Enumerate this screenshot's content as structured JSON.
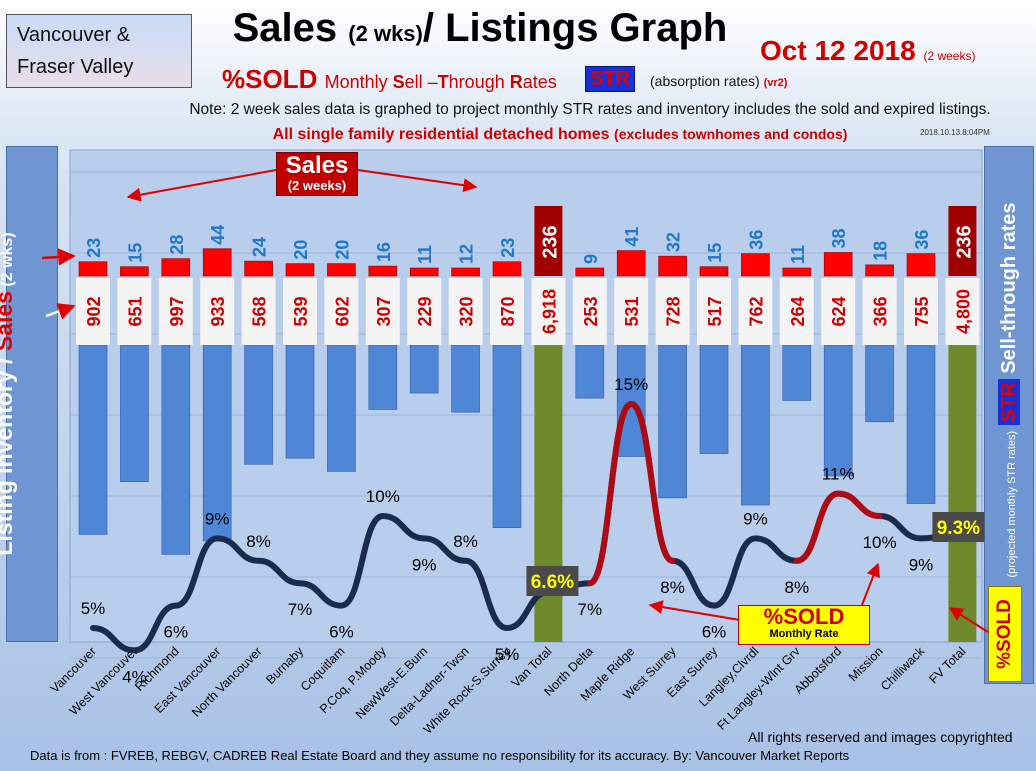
{
  "region": [
    "Vancouver &",
    "Fraser Valley"
  ],
  "header": {
    "title": "Sales",
    "title_small": "(2 wks)",
    "title_rest": "/ Listings Graph",
    "date": "Oct 12 2018",
    "date_small": "(2 weeks)",
    "subtitle": "%SOLD",
    "subtitle_m": "M",
    "subtitle_rest1": "onthly ",
    "subtitle_s": "S",
    "subtitle_rest2": "ell –",
    "subtitle_t": "T",
    "subtitle_rest3": "hrough ",
    "subtitle_r": "R",
    "subtitle_rest4": "ates",
    "str_badge": "STR",
    "absorption": "(absorption rates)",
    "version": "(vr2)",
    "note": "Note: 2 week sales data is graphed to project monthly STR rates and inventory includes the sold and expired listings.",
    "sfd_note": "All single family residential detached homes",
    "sfd_note_small": "(excludes townhomes and condos)",
    "timestamp": "2018.10.13.8:04PM"
  },
  "left_axis": {
    "part1": "Listing Inventory / ",
    "part2": "Sales",
    "part3": " (2 wks)"
  },
  "right_axis": {
    "str": "STR",
    "main": " Sell-through rates",
    "small": "(projected monthly STR rates)"
  },
  "sold_panel": "%SOLD",
  "callouts": {
    "sales_big": "Sales",
    "sales_small": "(2 weeks)",
    "sold_big": "%SOLD",
    "sold_small": "Monthly Rate"
  },
  "footer": {
    "rights": "All rights reserved and  images copyrighted",
    "source": "Data is from : FVREB, REBGV, CADREB Real Estate Board and they assume no responsibility for its accuracy. By: Vancouver Market Reports"
  },
  "colors": {
    "sales_bar": "#ff0000",
    "inventory_bar": "#4f86d6",
    "total_bar": "#6f8a2a",
    "total_sales": "#a00000",
    "str_line": "#1b2b4e",
    "str_line_hot": "#e00000",
    "sales_label": "#1f78c8"
  },
  "chart_data": {
    "type": "bar",
    "categories": [
      "Vancouver",
      "West Vancouver",
      "Richmond",
      "East Vancouver",
      "North Vancouver",
      "Burnaby",
      "Coquitlam",
      "P.Coq, P.Moody",
      "NewWest-E.Burn",
      "Delta-Ladner-Twsn",
      "White Rock-S.Surrey",
      "Van Total",
      "North Delta",
      "Maple Ridge",
      "West Surrey",
      "East Surrey",
      "Langley,Clvrdl",
      "Ft Langley-Wlnt Grv",
      "Abbotsford",
      "Mission",
      "Chilliwack",
      "FV Total"
    ],
    "series": [
      {
        "name": "Sales",
        "values": [
          23,
          15,
          28,
          44,
          24,
          20,
          20,
          16,
          11,
          12,
          23,
          236,
          9,
          41,
          32,
          15,
          36,
          11,
          38,
          18,
          36,
          236
        ]
      },
      {
        "name": "Listing Inventory",
        "values": [
          902,
          651,
          997,
          933,
          568,
          539,
          602,
          307,
          229,
          320,
          870,
          6918,
          253,
          531,
          728,
          517,
          762,
          264,
          624,
          366,
          755,
          4800
        ]
      },
      {
        "name": "%SOLD",
        "values": [
          5,
          4,
          6,
          9,
          8,
          7,
          6,
          10,
          9,
          8,
          5,
          6.6,
          7,
          15,
          8,
          6,
          9,
          8,
          11,
          10,
          9,
          9.3
        ]
      }
    ],
    "inventory_labels": [
      "902",
      "651",
      "997",
      "933",
      "568",
      "539",
      "602",
      "307",
      "229",
      "320",
      "870",
      "6,918",
      "253",
      "531",
      "728",
      "517",
      "762",
      "264",
      "624",
      "366",
      "755",
      "4,800"
    ],
    "sold_labels": [
      "5%",
      "4%",
      "6%",
      "9%",
      "8%",
      "7%",
      "6%",
      "10%",
      "9%",
      "8%",
      "5%",
      "6.6%",
      "7%",
      "15%",
      "8%",
      "6%",
      "9%",
      "8%",
      "11%",
      "10%",
      "9%",
      "9.3%"
    ],
    "total_indices": [
      11,
      21
    ],
    "sold_label_side": [
      "above",
      "below",
      "below",
      "above",
      "above",
      "below",
      "below",
      "above",
      "below",
      "above",
      "below",
      "left",
      "below",
      "above",
      "below",
      "below",
      "above",
      "below",
      "above",
      "below",
      "below",
      "above"
    ],
    "title": "Sales (2 wks)/ Listings Graph",
    "grid": true,
    "legend": "none"
  }
}
